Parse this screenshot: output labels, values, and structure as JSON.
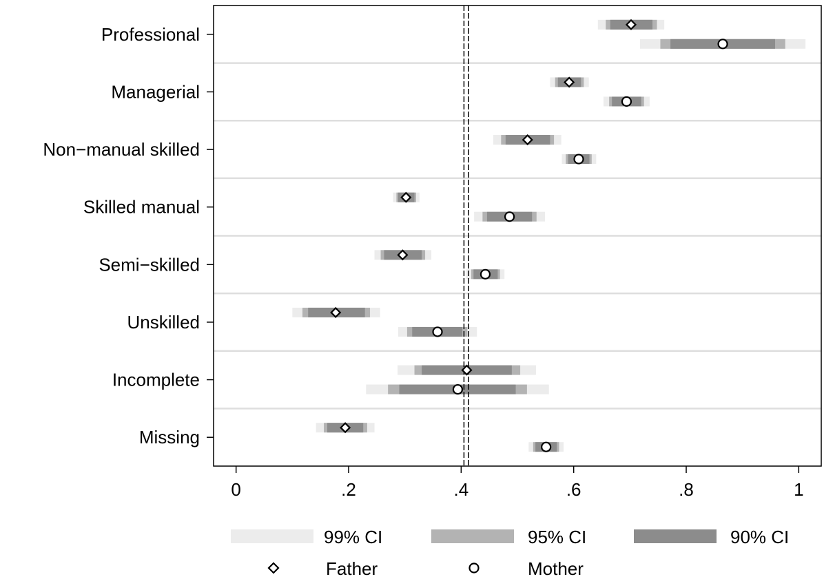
{
  "chart_data": {
    "type": "coefficient-dot-plot",
    "categories": [
      "Professional",
      "Managerial",
      "Non−manual skilled",
      "Skilled manual",
      "Semi−skilled",
      "Unskilled",
      "Incomplete",
      "Missing"
    ],
    "xlim": [
      -0.04,
      1.04
    ],
    "xticks": [
      {
        "value": 0,
        "label": "0"
      },
      {
        "value": 0.2,
        "label": ".2"
      },
      {
        "value": 0.4,
        "label": ".4"
      },
      {
        "value": 0.6,
        "label": ".6"
      },
      {
        "value": 0.8,
        "label": ".8"
      },
      {
        "value": 1,
        "label": "1"
      }
    ],
    "reference_lines": [
      0.405,
      0.413
    ],
    "grid": true,
    "legend_position": "bottom",
    "colors": {
      "ci99": "#ececec",
      "ci95": "#b3b3b3",
      "ci90": "#8c8c8c"
    },
    "series": [
      {
        "name": "Father",
        "marker": "diamond",
        "values": [
          0.702,
          0.592,
          0.518,
          0.302,
          0.296,
          0.177,
          0.41,
          0.194
        ],
        "ci90": [
          [
            0.665,
            0.74
          ],
          [
            0.572,
            0.613
          ],
          [
            0.479,
            0.558
          ],
          [
            0.288,
            0.317
          ],
          [
            0.263,
            0.33
          ],
          [
            0.128,
            0.229
          ],
          [
            0.33,
            0.49
          ],
          [
            0.162,
            0.226
          ]
        ],
        "ci95": [
          [
            0.657,
            0.748
          ],
          [
            0.567,
            0.618
          ],
          [
            0.471,
            0.565
          ],
          [
            0.285,
            0.32
          ],
          [
            0.257,
            0.336
          ],
          [
            0.118,
            0.238
          ],
          [
            0.317,
            0.505
          ],
          [
            0.156,
            0.233
          ]
        ],
        "ci99": [
          [
            0.643,
            0.761
          ],
          [
            0.558,
            0.627
          ],
          [
            0.457,
            0.578
          ],
          [
            0.279,
            0.326
          ],
          [
            0.246,
            0.347
          ],
          [
            0.1,
            0.256
          ],
          [
            0.287,
            0.533
          ],
          [
            0.142,
            0.246
          ]
        ]
      },
      {
        "name": "Mother",
        "marker": "circle",
        "values": [
          0.865,
          0.694,
          0.609,
          0.486,
          0.443,
          0.358,
          0.394,
          0.551
        ],
        "ci90": [
          [
            0.772,
            0.958
          ],
          [
            0.668,
            0.72
          ],
          [
            0.59,
            0.628
          ],
          [
            0.446,
            0.526
          ],
          [
            0.422,
            0.465
          ],
          [
            0.313,
            0.402
          ],
          [
            0.29,
            0.497
          ],
          [
            0.532,
            0.57
          ]
        ],
        "ci95": [
          [
            0.754,
            0.976
          ],
          [
            0.663,
            0.725
          ],
          [
            0.586,
            0.632
          ],
          [
            0.438,
            0.534
          ],
          [
            0.418,
            0.469
          ],
          [
            0.304,
            0.411
          ],
          [
            0.27,
            0.517
          ],
          [
            0.528,
            0.574
          ]
        ],
        "ci99": [
          [
            0.718,
            1.012
          ],
          [
            0.653,
            0.735
          ],
          [
            0.579,
            0.64
          ],
          [
            0.423,
            0.549
          ],
          [
            0.409,
            0.477
          ],
          [
            0.288,
            0.428
          ],
          [
            0.231,
            0.556
          ],
          [
            0.52,
            0.582
          ]
        ]
      }
    ],
    "legend": {
      "ci_labels": [
        "99% CI",
        "95% CI",
        "90% CI"
      ],
      "series_labels": [
        "Father",
        "Mother"
      ]
    }
  }
}
